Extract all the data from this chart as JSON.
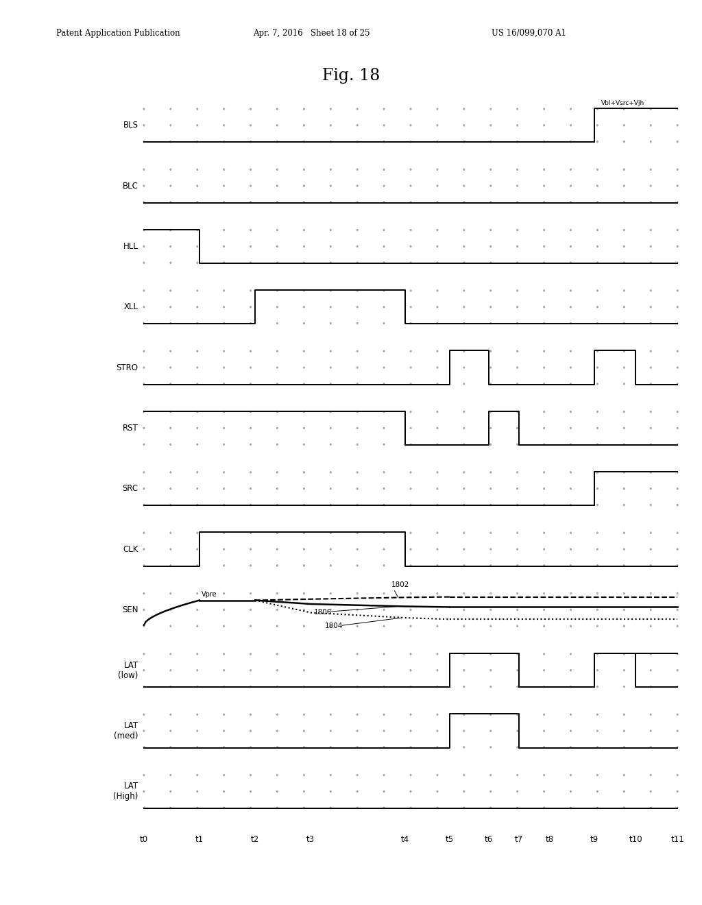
{
  "title": "Fig. 18",
  "header_left": "Patent Application Publication",
  "header_mid": "Apr. 7, 2016   Sheet 18 of 25",
  "header_right": "US 16/099,070 A1",
  "time_labels": [
    "t0",
    "t1",
    "t2",
    "t3",
    "t4",
    "t5",
    "t6",
    "t7",
    "t8",
    "t9",
    "t10",
    "t11"
  ],
  "time_positions": [
    0.0,
    1.0,
    2.0,
    3.0,
    4.7,
    5.5,
    6.2,
    6.75,
    7.3,
    8.1,
    8.85,
    9.6
  ],
  "signals": [
    "BLS",
    "BLC",
    "HLL",
    "XLL",
    "STRO",
    "RST",
    "SRC",
    "CLK",
    "SEN",
    "LAT\n(low)",
    "LAT\n(med)",
    "LAT\n(High)"
  ],
  "dot_color": "#aaaaaa",
  "line_color": "#000000",
  "background_color": "#ffffff",
  "bls_label": "Vbl+Vsrc+Vjh",
  "vpre_label": "Vpre",
  "sen_labels": [
    "1802",
    "1806",
    "1804"
  ]
}
